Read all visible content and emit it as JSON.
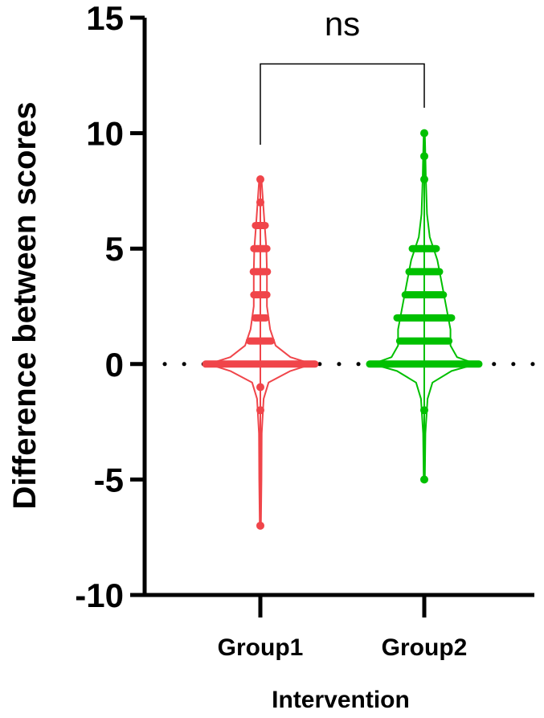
{
  "chart_data": {
    "type": "violin",
    "xlabel": "Intervention",
    "ylabel": "Difference between scores",
    "ylim": [
      -10,
      15
    ],
    "yticks": [
      -10,
      -5,
      0,
      5,
      10,
      15
    ],
    "ytick_labels": [
      "-10",
      "-5",
      "0",
      "5",
      "10",
      "15"
    ],
    "categories": [
      "Group1",
      "Group2"
    ],
    "reference_line": {
      "y": 0,
      "style": "dotted"
    },
    "annotation": {
      "text": "ns",
      "between": [
        "Group1",
        "Group2"
      ],
      "bracket_y": 13
    },
    "series": [
      {
        "category": "Group1",
        "color": "#f0454a",
        "values": [
          -7,
          -2,
          -1,
          0,
          1,
          2,
          3,
          4,
          5,
          6,
          7,
          8
        ],
        "bar_widths": {
          "-7": 0.02,
          "-2": 0.03,
          "-1": 0.08,
          "0": 1.0,
          "1": 0.2,
          "2": 0.1,
          "3": 0.12,
          "4": 0.13,
          "5": 0.12,
          "6": 0.09,
          "7": 0.05,
          "8": 0.03
        },
        "density": [
          [
            -7,
            0.01
          ],
          [
            -5,
            0.02
          ],
          [
            -3,
            0.025
          ],
          [
            -1.5,
            0.06
          ],
          [
            -0.8,
            0.15
          ],
          [
            -0.3,
            0.55
          ],
          [
            0,
            0.95
          ],
          [
            0.3,
            0.55
          ],
          [
            0.8,
            0.28
          ],
          [
            1.5,
            0.18
          ],
          [
            2.5,
            0.12
          ],
          [
            4,
            0.12
          ],
          [
            5,
            0.11
          ],
          [
            6,
            0.08
          ],
          [
            7,
            0.05
          ],
          [
            8,
            0.02
          ]
        ]
      },
      {
        "category": "Group2",
        "color": "#00c000",
        "values": [
          -5,
          -2,
          0,
          1,
          2,
          3,
          4,
          5,
          8,
          9,
          10
        ],
        "bar_widths": {
          "-5": 0.02,
          "-2": 0.03,
          "0": 1.0,
          "1": 0.45,
          "2": 0.5,
          "3": 0.35,
          "4": 0.28,
          "5": 0.22,
          "8": 0.03,
          "9": 0.03,
          "10": 0.03
        },
        "density": [
          [
            -5,
            0.01
          ],
          [
            -3,
            0.02
          ],
          [
            -1.5,
            0.06
          ],
          [
            -0.8,
            0.15
          ],
          [
            -0.3,
            0.5
          ],
          [
            0,
            0.95
          ],
          [
            0.3,
            0.6
          ],
          [
            0.8,
            0.48
          ],
          [
            1.5,
            0.48
          ],
          [
            2.5,
            0.4
          ],
          [
            3.5,
            0.32
          ],
          [
            4.5,
            0.24
          ],
          [
            5.5,
            0.1
          ],
          [
            6.5,
            0.05
          ],
          [
            8,
            0.03
          ],
          [
            9,
            0.02
          ],
          [
            10,
            0.01
          ]
        ]
      }
    ]
  }
}
